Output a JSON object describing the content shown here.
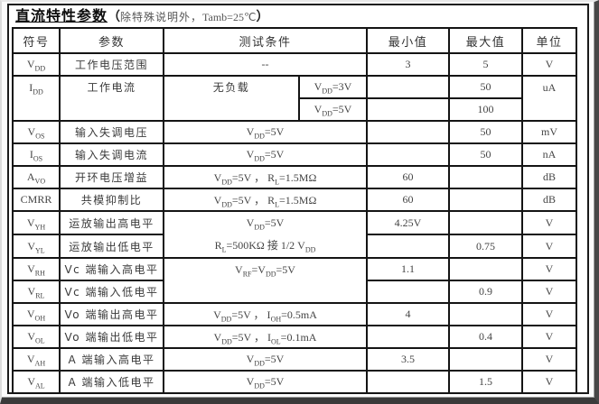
{
  "title": {
    "main": "直流特性参数",
    "paren_open": "（",
    "note": "除特殊说明外，",
    "temp": "Tamb=25℃",
    "paren_close": "）"
  },
  "header": {
    "symbol": "符号",
    "param": "参数",
    "condition": "测试条件",
    "min": "最小值",
    "max": "最大值",
    "unit": "单位"
  },
  "rows": {
    "vdd": {
      "symbol": "V~DD~",
      "param": "工作电压范围",
      "cond": "--",
      "min": "3",
      "max": "",
      "unit": "V"
    },
    "idd": {
      "symbol": "I~DD~",
      "param": "工作电流",
      "cond_main": "无负载",
      "cond_a": "V~DD~=3V",
      "max_a": "50",
      "cond_b": "V~DD~=5V",
      "max_b": "100",
      "unit": "uA"
    },
    "vdd_max": "5",
    "vos": {
      "symbol": "V~OS~",
      "param": "输入失调电压",
      "cond": "V~DD~=5V",
      "min": "",
      "max": "50",
      "unit": "mV"
    },
    "ios": {
      "symbol": "I~OS~",
      "param": "输入失调电流",
      "cond": "V~DD~=5V",
      "min": "",
      "max": "50",
      "unit": "nA"
    },
    "avo": {
      "symbol": "A~VO~",
      "param": "开环电压增益",
      "cond": "V~DD~=5V ， R~L~=1.5MΩ",
      "min": "60",
      "max": "",
      "unit": "dB"
    },
    "cmrr": {
      "symbol": "CMRR",
      "param": "共模抑制比",
      "cond": "V~DD~=5V ， R~L~=1.5MΩ",
      "min": "60",
      "max": "",
      "unit": "dB"
    },
    "vyh": {
      "symbol": "V~YH~",
      "param": "运放输出高电平",
      "cond1": "V~DD~=5V",
      "cond2": "R~L~=500KΩ 接 1/2 V~DD~",
      "min": "4.25V",
      "max": "",
      "unit": "V"
    },
    "vyl": {
      "symbol": "V~YL~",
      "param": "运放输出低电平",
      "min": "",
      "max": "0.75",
      "unit": "V"
    },
    "vrh": {
      "symbol": "V~RH~",
      "param": "Vc 端输入高电平",
      "cond": "V~RF~=V~DD~=5V",
      "min": "1.1",
      "max": "",
      "unit": "V"
    },
    "vrl": {
      "symbol": "V~RL~",
      "param": "Vc 端输入低电平",
      "min": "",
      "max": "0.9",
      "unit": "V"
    },
    "voh": {
      "symbol": "V~OH~",
      "param": "Vo 端输出高电平",
      "cond": "V~DD~=5V ， I~OH~=0.5mA",
      "min": "4",
      "max": "",
      "unit": "V"
    },
    "vol": {
      "symbol": "V~OL~",
      "param": "Vo 端输出低电平",
      "cond": "V~DD~=5V ， I~OL~=0.1mA",
      "min": "",
      "max": "0.4",
      "unit": "V"
    },
    "vah": {
      "symbol": "V~AH~",
      "param": "A 端输入高电平",
      "cond": "V~DD~=5V",
      "min": "3.5",
      "max": "",
      "unit": "V"
    },
    "val": {
      "symbol": "V~AL~",
      "param": "A 端输入低电平",
      "cond": "V~DD~=5V",
      "min": "",
      "max": "1.5",
      "unit": "V"
    }
  }
}
